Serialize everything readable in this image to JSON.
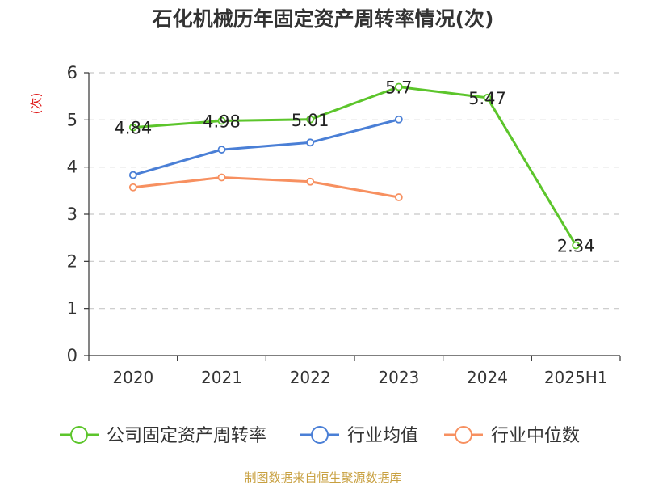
{
  "chart_data": {
    "type": "line",
    "title": "石化机械历年固定资产周转率情况(次)",
    "ylabel": "(次)",
    "xlabel": "",
    "categories": [
      "2020",
      "2021",
      "2022",
      "2023",
      "2024",
      "2025H1"
    ],
    "ylim": [
      0,
      6
    ],
    "yticks": [
      0,
      1,
      2,
      3,
      4,
      5,
      6
    ],
    "grid": true,
    "legend_position": "bottom",
    "series": [
      {
        "name": "公司固定资产周转率",
        "color": "#5cc52b",
        "show_labels": true,
        "values": [
          4.84,
          4.98,
          5.01,
          5.7,
          5.47,
          2.34
        ]
      },
      {
        "name": "行业均值",
        "color": "#4a7fd6",
        "show_labels": false,
        "values": [
          3.83,
          4.37,
          4.52,
          5.01,
          null,
          null
        ]
      },
      {
        "name": "行业中位数",
        "color": "#f79060",
        "show_labels": false,
        "values": [
          3.57,
          3.78,
          3.69,
          3.36,
          null,
          null
        ]
      }
    ]
  },
  "footer": {
    "source": "制图数据来自恒生聚源数据库"
  }
}
